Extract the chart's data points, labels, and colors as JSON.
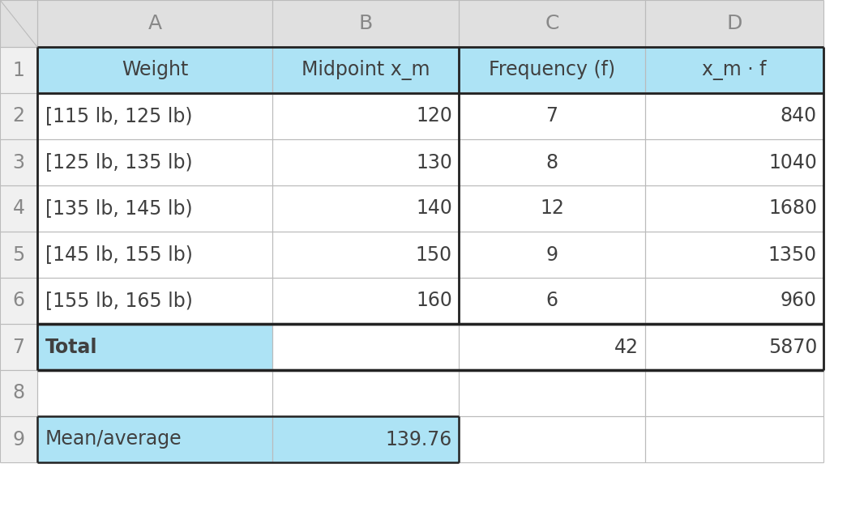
{
  "col_headers": [
    "A",
    "B",
    "C",
    "D"
  ],
  "header_row": [
    "Weight",
    "Midpoint x_m",
    "Frequency (f)",
    "x_m · f"
  ],
  "data_rows": [
    [
      "[115 lb, 125 lb)",
      "120",
      "7",
      "840"
    ],
    [
      "[125 lb, 135 lb)",
      "130",
      "8",
      "1040"
    ],
    [
      "[135 lb, 145 lb)",
      "140",
      "12",
      "1680"
    ],
    [
      "[145 lb, 155 lb)",
      "150",
      "9",
      "1350"
    ],
    [
      "[155 lb, 165 lb)",
      "160",
      "6",
      "960"
    ]
  ],
  "total_row": [
    "Total",
    "",
    "42",
    "5870"
  ],
  "mean_row": [
    "Mean/average",
    "139.76",
    "",
    ""
  ],
  "light_blue": "#ADE3F5",
  "white": "#FFFFFF",
  "col_header_bg": "#E0E0E0",
  "row_num_bg": "#F0F0F0",
  "grid_color": "#BBBBBB",
  "dark_border": "#222222",
  "text_color": "#404040",
  "fig_width": 10.66,
  "fig_height": 6.36,
  "dpi": 100
}
